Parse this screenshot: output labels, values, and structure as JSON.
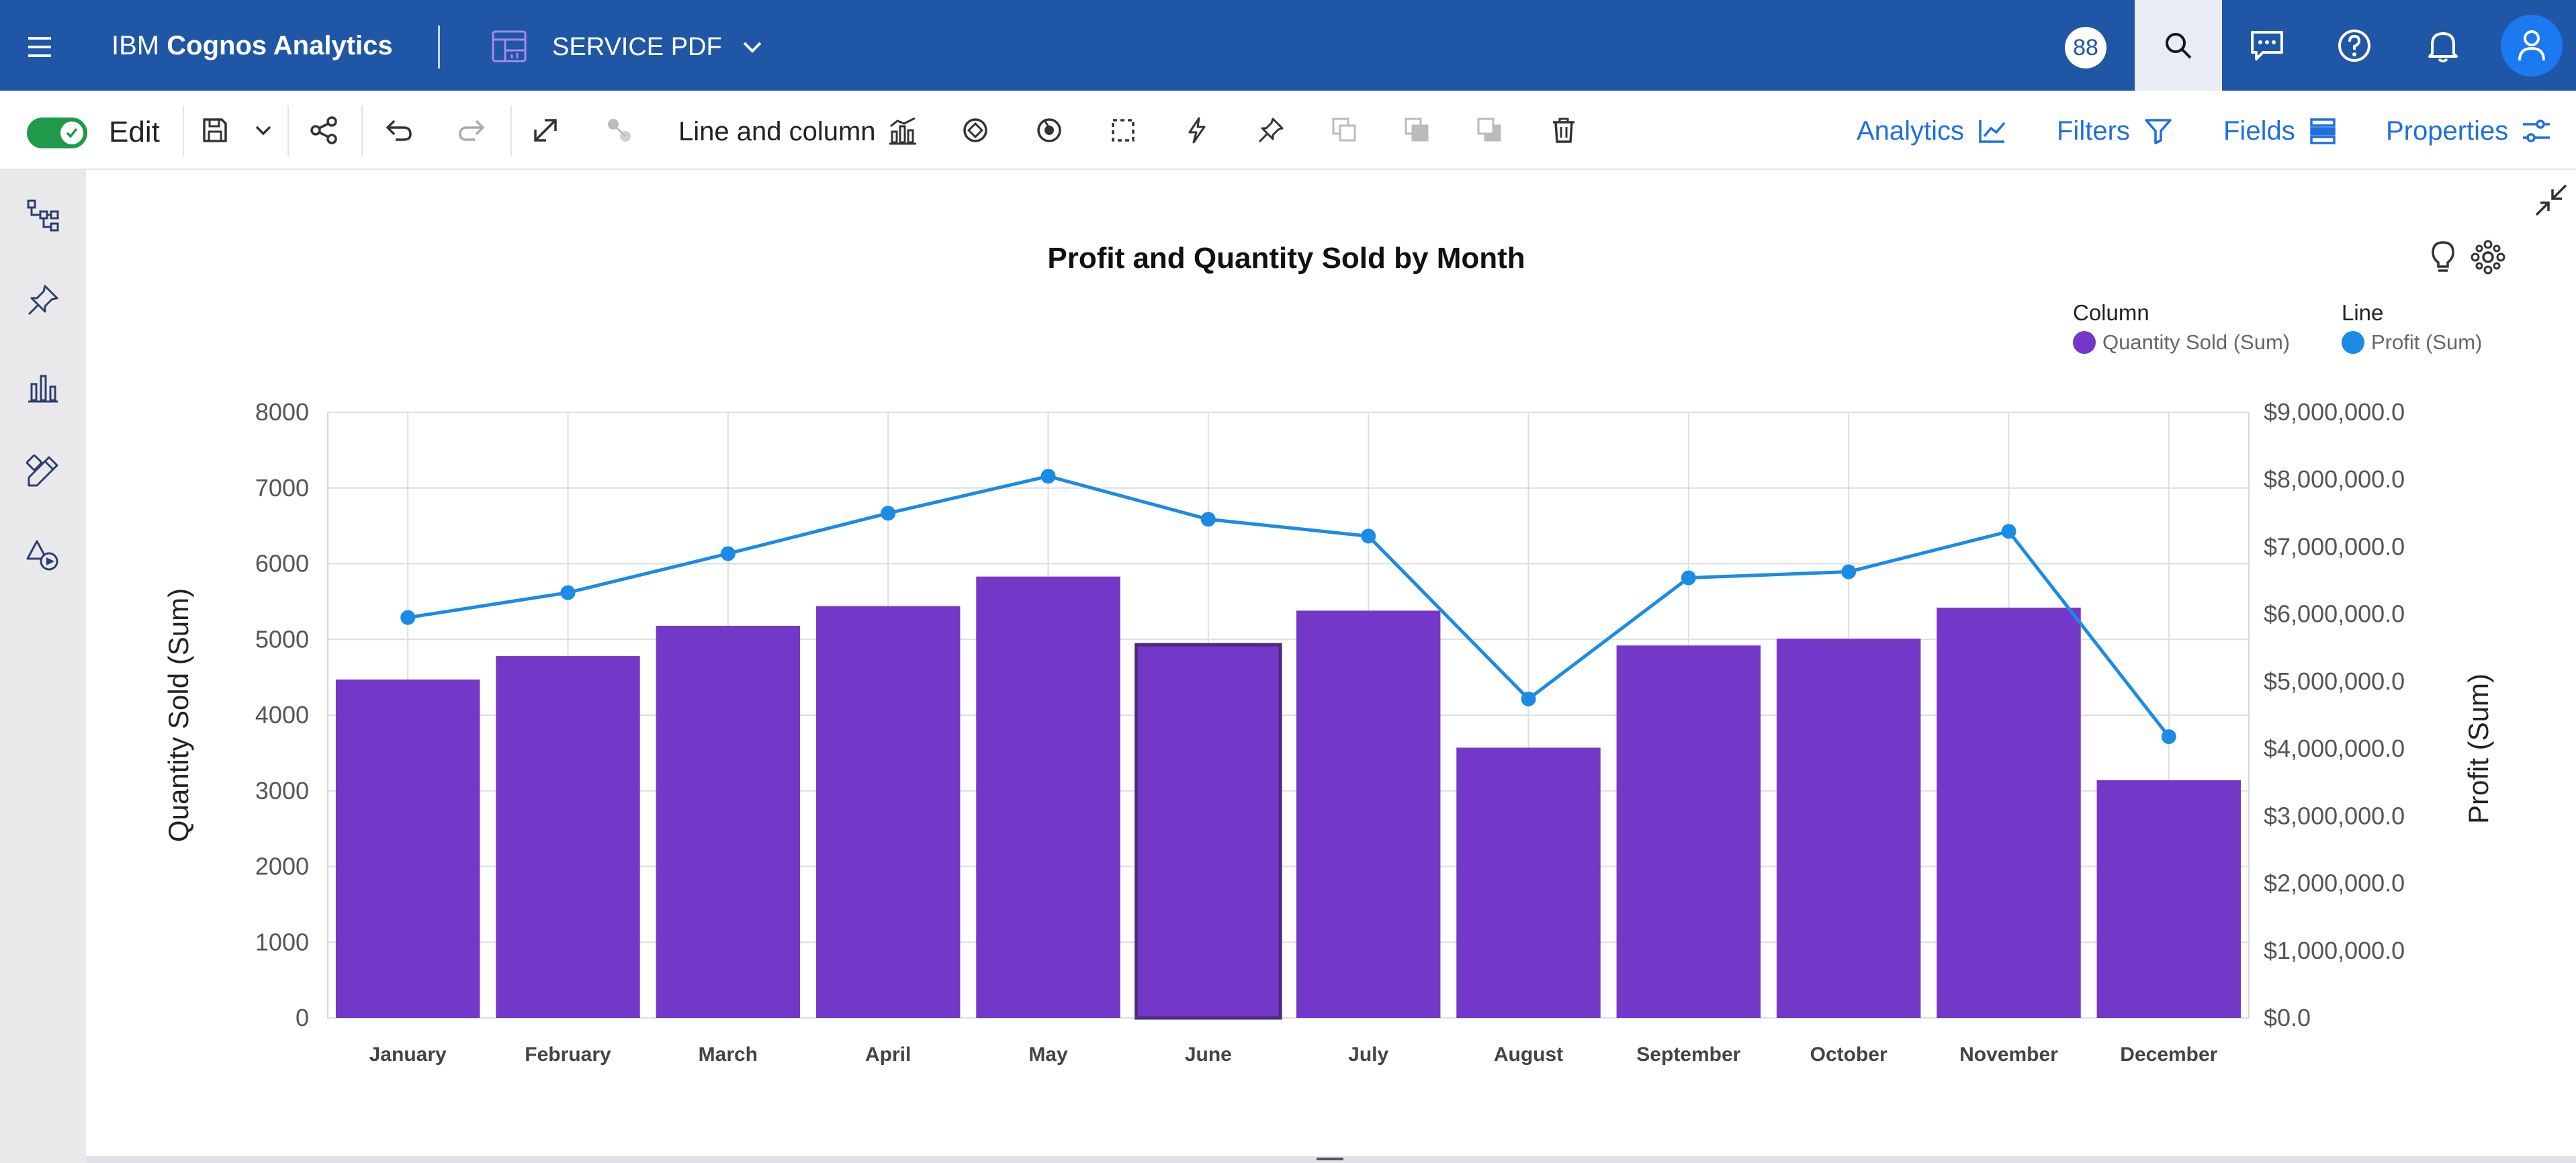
{
  "header": {
    "brand_prefix": "IBM",
    "brand_name": "Cognos Analytics",
    "document_name": "SERVICE PDF",
    "badge_count": "88"
  },
  "toolbar": {
    "edit_label": "Edit",
    "edit_toggle_on": true,
    "chart_type_label": "Line and column",
    "analytics_label": "Analytics",
    "filters_label": "Filters",
    "fields_label": "Fields",
    "properties_label": "Properties"
  },
  "left_rail": {
    "icons": [
      "hierarchy-icon",
      "pin-icon",
      "visualizations-icon",
      "design-icon",
      "shapes-media-icon"
    ]
  },
  "colors": {
    "header_bg": "#1f57a6",
    "column_series": "#7438c8",
    "line_series": "#1a8be6",
    "accent_link": "#1f6fe0",
    "toggle_on": "#1f9a4a"
  },
  "legend": {
    "column_heading": "Column",
    "column_item": "Quantity Sold (Sum)",
    "line_heading": "Line",
    "line_item": "Profit (Sum)"
  },
  "chart_data": {
    "type": "bar",
    "combo": "line and column",
    "title": "Profit and Quantity Sold by Month",
    "xlabel": "",
    "ylabel_left": "Quantity Sold (Sum)",
    "ylabel_right": "Profit (Sum)",
    "categories": [
      "January",
      "February",
      "March",
      "April",
      "May",
      "June",
      "July",
      "August",
      "September",
      "October",
      "November",
      "December"
    ],
    "left_axis": {
      "min": 0,
      "max": 8000,
      "ticks": [
        "0",
        "1000",
        "2000",
        "3000",
        "4000",
        "5000",
        "6000",
        "7000",
        "8000"
      ]
    },
    "right_axis": {
      "min": 0,
      "max": 9000000,
      "ticks": [
        "$0.0",
        "$1,000,000.0",
        "$2,000,000.0",
        "$3,000,000.0",
        "$4,000,000.0",
        "$5,000,000.0",
        "$6,000,000.0",
        "$7,000,000.0",
        "$8,000,000.0",
        "$9,000,000.0"
      ]
    },
    "grid": true,
    "legend_position": "top-right",
    "highlighted_category": "June",
    "series": [
      {
        "name": "Quantity Sold (Sum)",
        "type": "column",
        "axis": "left",
        "color": "#7438c8",
        "values": [
          4470,
          4780,
          5180,
          5440,
          5830,
          4930,
          5380,
          3570,
          4920,
          5010,
          5420,
          3140
        ]
      },
      {
        "name": "Profit (Sum)",
        "type": "line",
        "axis": "right",
        "color": "#1a8be6",
        "values": [
          5950000,
          6320000,
          6900000,
          7500000,
          8050000,
          7410000,
          7160000,
          4740000,
          6540000,
          6630000,
          7230000,
          4180000
        ]
      }
    ]
  }
}
